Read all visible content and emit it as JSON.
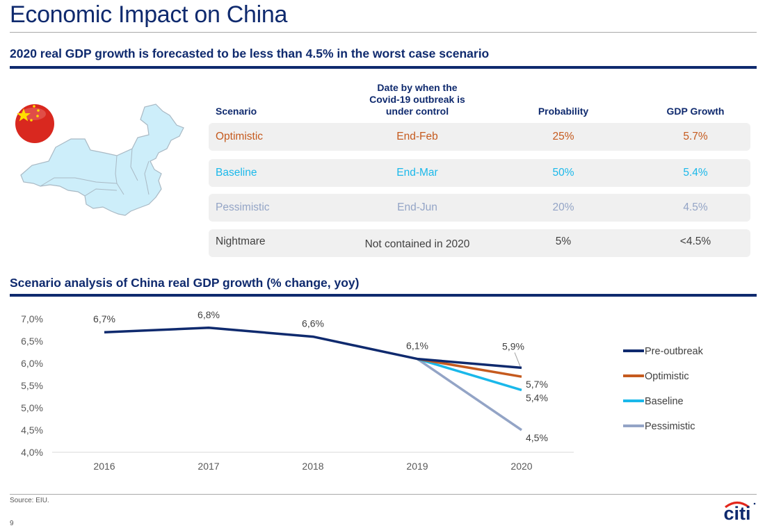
{
  "page": {
    "title": "Economic Impact on China",
    "section1_title": "2020 real GDP growth is forecasted to be less than 4.5% in the worst case scenario",
    "section2_title": "Scenario analysis of China real GDP growth (% change, yoy)",
    "source": "Source: EIU.",
    "page_number": "9",
    "logo_text": "citi"
  },
  "colors": {
    "navy": "#0f2a6e",
    "optimistic": "#c55a1e",
    "baseline": "#1ab8ea",
    "pessimistic": "#93a4c6",
    "nightmare": "#404040",
    "logo_arc": "#e3261b"
  },
  "table": {
    "headers": {
      "scenario": "Scenario",
      "date_line1": "Date by when the",
      "date_line2": "Covid-19 outbreak is",
      "date_line3": "under control",
      "probability": "Probability",
      "gdp": "GDP Growth"
    },
    "rows": [
      {
        "scenario": "Optimistic",
        "date": "End-Feb",
        "probability": "25%",
        "gdp": "5.7%"
      },
      {
        "scenario": "Baseline",
        "date": "End-Mar",
        "probability": "50%",
        "gdp": "5.4%"
      },
      {
        "scenario": "Pessimistic",
        "date": "End-Jun",
        "probability": "20%",
        "gdp": "4.5%"
      },
      {
        "scenario": "Nightmare",
        "date": "Not contained in 2020",
        "probability": "5%",
        "gdp": "<4.5%"
      }
    ]
  },
  "chart_data": {
    "type": "line",
    "title": "Scenario analysis of China real GDP growth (% change, yoy)",
    "xlabel": "",
    "ylabel": "",
    "x": [
      "2016",
      "2017",
      "2018",
      "2019",
      "2020"
    ],
    "ylim": [
      4.0,
      7.0
    ],
    "yticks": [
      "7,0%",
      "6,5%",
      "6,0%",
      "5,5%",
      "5,0%",
      "4,5%",
      "4,0%"
    ],
    "ytick_values": [
      7.0,
      6.5,
      6.0,
      5.5,
      5.0,
      4.5,
      4.0
    ],
    "grid": false,
    "legend_position": "right",
    "series": [
      {
        "name": "Pre-outbreak",
        "color": "#0f2a6e",
        "values": [
          6.7,
          6.8,
          6.6,
          6.1,
          5.9
        ],
        "labels": [
          "6,7%",
          "6,8%",
          "6,6%",
          "6,1%",
          "5,9%"
        ]
      },
      {
        "name": "Optimistic",
        "color": "#c55a1e",
        "values": [
          null,
          null,
          null,
          6.1,
          5.7
        ],
        "labels": [
          null,
          null,
          null,
          null,
          "5,7%"
        ]
      },
      {
        "name": "Baseline",
        "color": "#1ab8ea",
        "values": [
          null,
          null,
          null,
          6.1,
          5.4
        ],
        "labels": [
          null,
          null,
          null,
          null,
          "5,4%"
        ]
      },
      {
        "name": "Pessimistic",
        "color": "#93a4c6",
        "values": [
          null,
          null,
          null,
          6.1,
          4.5
        ],
        "labels": [
          null,
          null,
          null,
          null,
          "4,5%"
        ]
      }
    ]
  }
}
